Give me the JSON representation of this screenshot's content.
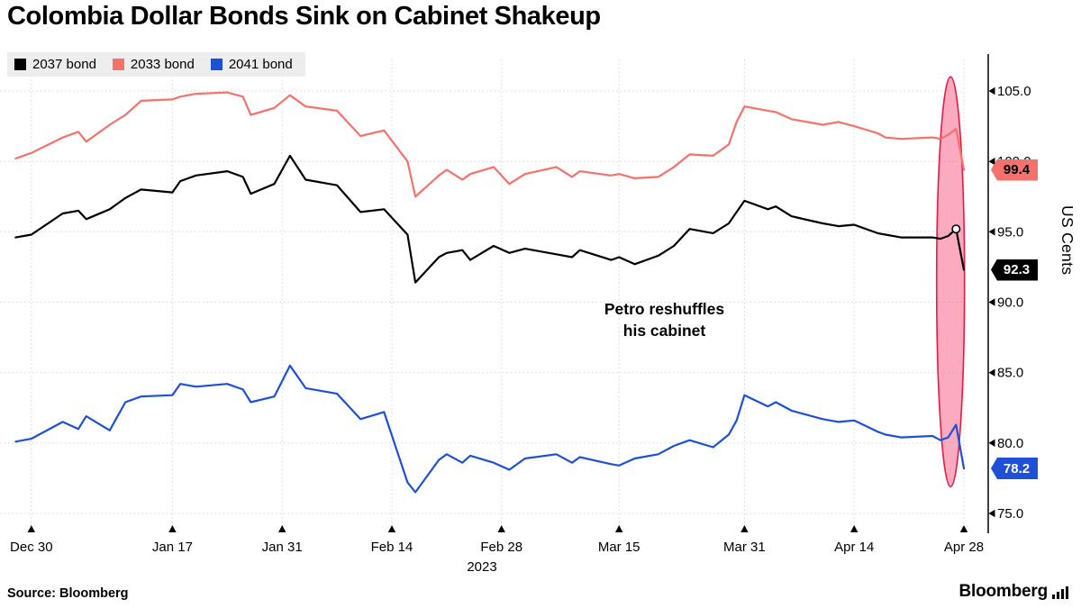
{
  "footer": {
    "source": "Source: Bloomberg",
    "brand": "Bloomberg"
  },
  "chart_data": {
    "type": "line",
    "title": "Colombia Dollar Bonds Sink on Cabinet Shakeup",
    "ylabel": "US Cents",
    "ylim": [
      75,
      105
    ],
    "x_axis_year": "2023",
    "annotation": {
      "line1": "Petro reshuffles",
      "line2": "his cabinet"
    },
    "y_ticks": [
      {
        "value": 105,
        "label": "105.0"
      },
      {
        "value": 100,
        "label": "100.0"
      },
      {
        "value": 95,
        "label": "95.0"
      },
      {
        "value": 90,
        "label": "90.0"
      },
      {
        "value": 85,
        "label": "85.0"
      },
      {
        "value": 80,
        "label": "80.0"
      },
      {
        "value": 75,
        "label": "75.0"
      }
    ],
    "x_ticks": [
      {
        "day": 2,
        "label": "Dec 30"
      },
      {
        "day": 20,
        "label": "Jan 17"
      },
      {
        "day": 34,
        "label": "Jan 31"
      },
      {
        "day": 48,
        "label": "Feb 14"
      },
      {
        "day": 62,
        "label": "Feb 28"
      },
      {
        "day": 77,
        "label": "Mar 15"
      },
      {
        "day": 93,
        "label": "Mar 31"
      },
      {
        "day": 107,
        "label": "Apr 14"
      },
      {
        "day": 121,
        "label": "Apr 28"
      }
    ],
    "day_offset_reference": "days from Dec 28 (approx, read from x axis)",
    "day_offsets": [
      0,
      2,
      6,
      8,
      9,
      12,
      14,
      16,
      20,
      21,
      23,
      27,
      29,
      30,
      33,
      35,
      37,
      41,
      44,
      47,
      50,
      51,
      54,
      55,
      57,
      58,
      61,
      63,
      65,
      69,
      71,
      72,
      76,
      77,
      79,
      82,
      84,
      86,
      89,
      91,
      92,
      93,
      96,
      97,
      99,
      103,
      105,
      107,
      110,
      111,
      113,
      117,
      118,
      119,
      120,
      121
    ],
    "series": [
      {
        "name": "2037 bond",
        "color": "#000000",
        "label_text_color": "#ffffff",
        "end_label": "92.3",
        "values": [
          94.6,
          94.8,
          96.3,
          96.5,
          95.9,
          96.6,
          97.4,
          98.0,
          97.8,
          98.6,
          99.0,
          99.3,
          98.9,
          97.7,
          98.4,
          100.4,
          98.7,
          98.3,
          96.4,
          96.6,
          94.8,
          91.4,
          93.2,
          93.5,
          93.7,
          93.0,
          94.0,
          93.5,
          93.8,
          93.4,
          93.2,
          93.7,
          93.0,
          93.2,
          92.7,
          93.3,
          94.0,
          95.2,
          94.9,
          95.6,
          96.4,
          97.2,
          96.6,
          96.8,
          96.1,
          95.6,
          95.4,
          95.5,
          94.9,
          94.8,
          94.6,
          94.6,
          94.5,
          94.7,
          95.2,
          92.3
        ]
      },
      {
        "name": "2033 bond",
        "color": "#f4716c",
        "label_text_color": "#000000",
        "end_label": "99.4",
        "values": [
          100.2,
          100.6,
          101.7,
          102.1,
          101.4,
          102.6,
          103.3,
          104.3,
          104.4,
          104.6,
          104.8,
          104.9,
          104.6,
          103.3,
          103.8,
          104.7,
          103.9,
          103.6,
          101.8,
          102.2,
          100.0,
          97.5,
          99.0,
          99.4,
          98.7,
          99.1,
          99.6,
          98.4,
          99.1,
          99.6,
          98.9,
          99.3,
          99.0,
          99.1,
          98.8,
          98.9,
          99.6,
          100.5,
          100.4,
          101.2,
          102.8,
          103.9,
          103.6,
          103.5,
          103.0,
          102.6,
          102.8,
          102.5,
          102.0,
          101.7,
          101.6,
          101.7,
          101.6,
          101.9,
          102.3,
          99.4
        ]
      },
      {
        "name": "2041 bond",
        "color": "#1e50d6",
        "label_text_color": "#ffffff",
        "end_label": "78.2",
        "values": [
          80.1,
          80.3,
          81.5,
          81.0,
          81.9,
          80.9,
          82.9,
          83.3,
          83.4,
          84.2,
          84.0,
          84.2,
          83.8,
          82.9,
          83.3,
          85.5,
          83.9,
          83.5,
          81.7,
          82.2,
          77.2,
          76.5,
          78.8,
          79.2,
          78.6,
          79.1,
          78.6,
          78.1,
          78.9,
          79.2,
          78.6,
          79.0,
          78.5,
          78.4,
          78.9,
          79.2,
          79.8,
          80.2,
          79.7,
          80.6,
          81.6,
          83.4,
          82.6,
          82.9,
          82.3,
          81.7,
          81.5,
          81.6,
          80.8,
          80.6,
          80.4,
          80.5,
          80.2,
          80.4,
          81.3,
          78.2
        ]
      }
    ],
    "highlight": {
      "shape": "ellipse",
      "center_day": 119.3,
      "top_value": 106,
      "bottom_value": 76.9,
      "fill": "#f75580",
      "stroke": "#e11d48"
    },
    "marker": {
      "series": "2037 bond",
      "day": 120,
      "value": 95.2
    }
  }
}
